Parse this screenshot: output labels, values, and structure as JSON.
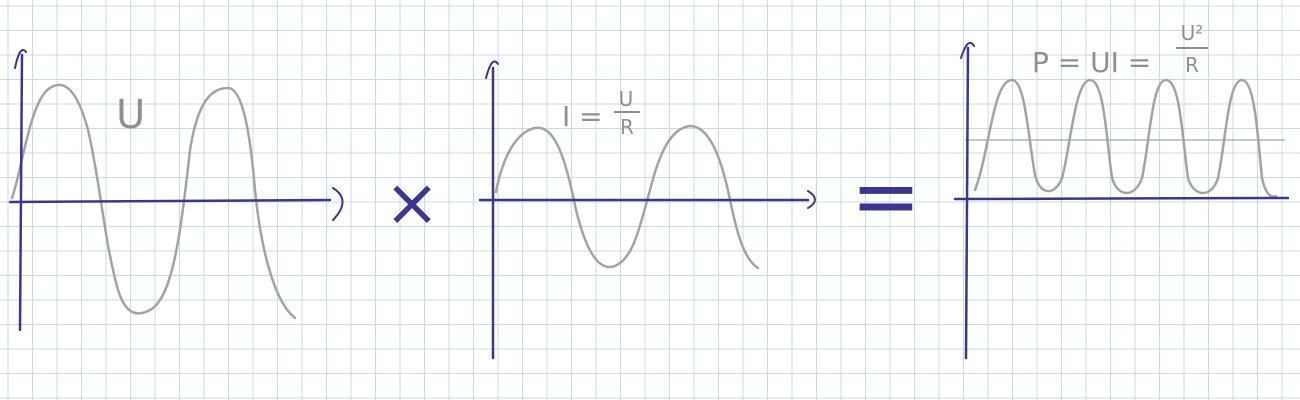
{
  "colors": {
    "paper": "#ffffff",
    "grid": "#c6dbe8",
    "axis": "#3d3593",
    "curve": "#a3a3a3",
    "ink": "#8f8f8f"
  },
  "panels": {
    "voltage": {
      "label": "U"
    },
    "current": {
      "label_main": "I =",
      "label_num": "U",
      "label_den": "R"
    },
    "power": {
      "label_main": "P = UI =",
      "label_num": "U²",
      "label_den": "R"
    }
  },
  "operators": {
    "multiply": "×",
    "equals": "="
  }
}
